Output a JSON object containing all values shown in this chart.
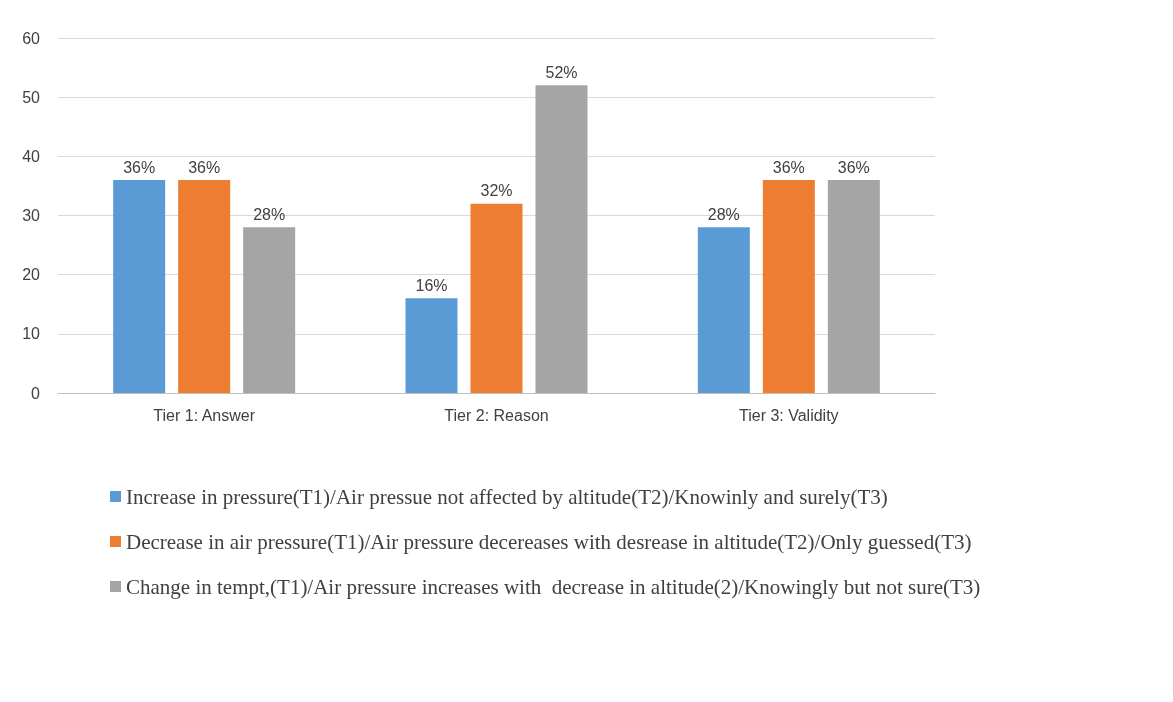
{
  "chart_data": {
    "type": "bar",
    "categories": [
      "Tier 1: Answer",
      "Tier 2: Reason",
      "Tier 3: Validity"
    ],
    "series": [
      {
        "name": "Increase in pressure(T1)/Air pressue not affected by altitude(T2)/Knowinly and surely(T3)",
        "color": "#5b9bd5",
        "values": [
          36,
          16,
          28
        ],
        "value_labels": [
          "36%",
          "16%",
          "28%"
        ]
      },
      {
        "name": "Decrease in air pressure(T1)/Air pressure decereases with desrease in altitude(T2)/Only guessed(T3)",
        "color": "#ed7d31",
        "values": [
          36,
          32,
          36
        ],
        "value_labels": [
          "36%",
          "32%",
          "36%"
        ]
      },
      {
        "name": "Change in tempt,(T1)/Air pressure increases with  decrease in altitude(2)/Knowingly but not sure(T3)",
        "color": "#a5a5a5",
        "values": [
          28,
          52,
          36
        ],
        "value_labels": [
          "28%",
          "52%",
          "36%"
        ]
      }
    ],
    "ylim": [
      0,
      60
    ],
    "yticks": [
      0,
      10,
      20,
      30,
      40,
      50,
      60
    ],
    "grid": "y",
    "legend": "bottom"
  }
}
